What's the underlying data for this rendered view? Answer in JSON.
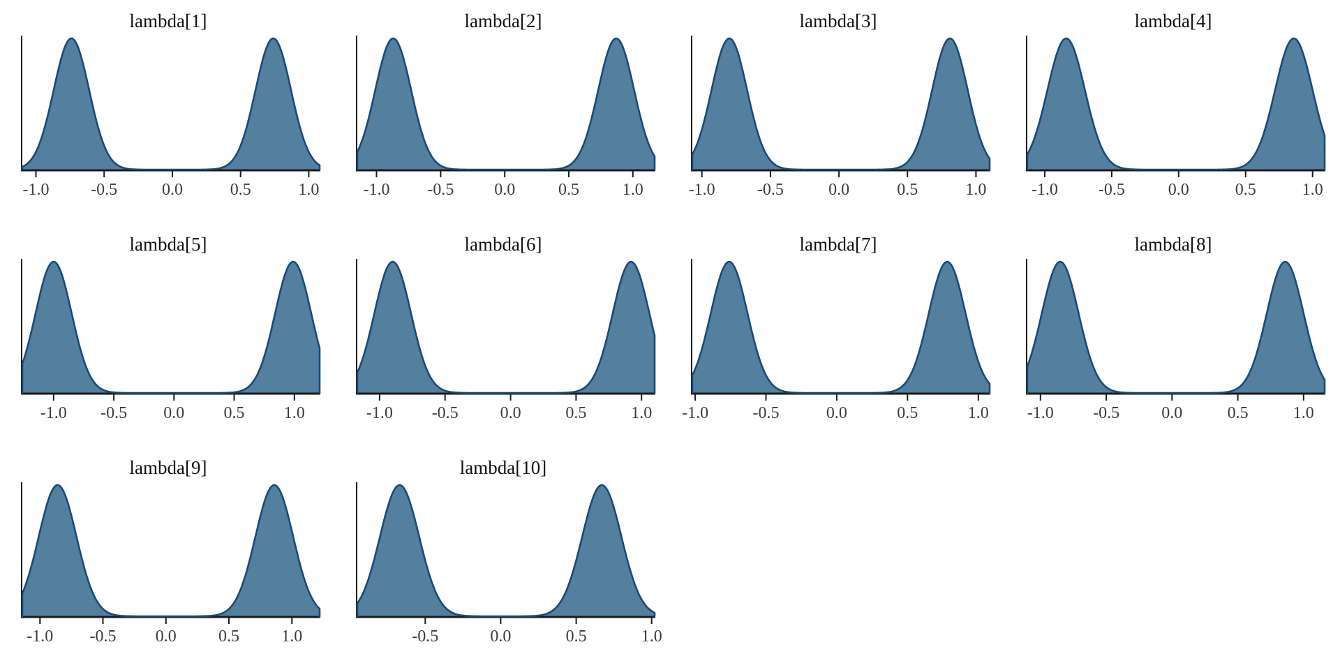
{
  "figure": {
    "kind": "posterior density grid",
    "rows": 3,
    "cols": 4,
    "background": "#ffffff"
  },
  "style": {
    "fill_color": "#53809e",
    "line_color": "#174a7c",
    "axis_color": "#1b1b1b",
    "tick_label_color": "#3c3c3c",
    "title_color": "#101010"
  },
  "chart_data": [
    {
      "type": "area",
      "title": "lambda[1]",
      "xlabel": "",
      "ylabel": "",
      "grid": false,
      "legend": false,
      "x_range": [
        -1.1,
        1.08
      ],
      "xticks": [
        -1.0,
        -0.5,
        0.0,
        0.5,
        1.0
      ],
      "xtick_labels": [
        "-1.0",
        "-0.5",
        "0.0",
        "0.5",
        "1.0"
      ],
      "kde_peaks": [
        {
          "mean": -0.74,
          "sd": 0.13
        },
        {
          "mean": 0.74,
          "sd": 0.13
        }
      ]
    },
    {
      "type": "area",
      "title": "lambda[2]",
      "xlabel": "",
      "ylabel": "",
      "grid": false,
      "legend": false,
      "x_range": [
        -1.15,
        1.17
      ],
      "xticks": [
        -1.0,
        -0.5,
        0.0,
        0.5,
        1.0
      ],
      "xtick_labels": [
        "-1.0",
        "-0.5",
        "0.0",
        "0.5",
        "1.0"
      ],
      "kde_peaks": [
        {
          "mean": -0.87,
          "sd": 0.14
        },
        {
          "mean": 0.87,
          "sd": 0.14
        }
      ]
    },
    {
      "type": "area",
      "title": "lambda[3]",
      "xlabel": "",
      "ylabel": "",
      "grid": false,
      "legend": false,
      "x_range": [
        -1.07,
        1.1
      ],
      "xticks": [
        -1.0,
        -0.5,
        0.0,
        0.5,
        1.0
      ],
      "xtick_labels": [
        "-1.0",
        "-0.5",
        "0.0",
        "0.5",
        "1.0"
      ],
      "kde_peaks": [
        {
          "mean": -0.8,
          "sd": 0.13
        },
        {
          "mean": 0.81,
          "sd": 0.13
        }
      ]
    },
    {
      "type": "area",
      "title": "lambda[4]",
      "xlabel": "",
      "ylabel": "",
      "grid": false,
      "legend": false,
      "x_range": [
        -1.13,
        1.09
      ],
      "xticks": [
        -1.0,
        -0.5,
        0.0,
        0.5,
        1.0
      ],
      "xtick_labels": [
        "-1.0",
        "-0.5",
        "0.0",
        "0.5",
        "1.0"
      ],
      "kde_peaks": [
        {
          "mean": -0.84,
          "sd": 0.14
        },
        {
          "mean": 0.86,
          "sd": 0.14
        }
      ]
    },
    {
      "type": "area",
      "title": "lambda[5]",
      "xlabel": "",
      "ylabel": "",
      "grid": false,
      "legend": false,
      "x_range": [
        -1.26,
        1.21
      ],
      "xticks": [
        -1.0,
        -0.5,
        0.0,
        0.5,
        1.0
      ],
      "xtick_labels": [
        "-1.0",
        "-0.5",
        "0.0",
        "0.5",
        "1.0"
      ],
      "kde_peaks": [
        {
          "mean": -1.0,
          "sd": 0.15
        },
        {
          "mean": 0.99,
          "sd": 0.15
        }
      ]
    },
    {
      "type": "area",
      "title": "lambda[6]",
      "xlabel": "",
      "ylabel": "",
      "grid": false,
      "legend": false,
      "x_range": [
        -1.17,
        1.1
      ],
      "xticks": [
        -1.0,
        -0.5,
        0.0,
        0.5,
        1.0
      ],
      "xtick_labels": [
        "-1.0",
        "-0.5",
        "0.0",
        "0.5",
        "1.0"
      ],
      "kde_peaks": [
        {
          "mean": -0.9,
          "sd": 0.14
        },
        {
          "mean": 0.92,
          "sd": 0.14
        }
      ]
    },
    {
      "type": "area",
      "title": "lambda[7]",
      "xlabel": "",
      "ylabel": "",
      "grid": false,
      "legend": false,
      "x_range": [
        -1.02,
        1.08
      ],
      "xticks": [
        -1.0,
        -0.5,
        0.0,
        0.5,
        1.0
      ],
      "xtick_labels": [
        "-1.0",
        "-0.5",
        "0.0",
        "0.5",
        "1.0"
      ],
      "kde_peaks": [
        {
          "mean": -0.76,
          "sd": 0.13
        },
        {
          "mean": 0.78,
          "sd": 0.13
        }
      ]
    },
    {
      "type": "area",
      "title": "lambda[8]",
      "xlabel": "",
      "ylabel": "",
      "grid": false,
      "legend": false,
      "x_range": [
        -1.1,
        1.16
      ],
      "xticks": [
        -1.0,
        -0.5,
        0.0,
        0.5,
        1.0
      ],
      "xtick_labels": [
        "-1.0",
        "-0.5",
        "0.0",
        "0.5",
        "1.0"
      ],
      "kde_peaks": [
        {
          "mean": -0.85,
          "sd": 0.14
        },
        {
          "mean": 0.86,
          "sd": 0.14
        }
      ]
    },
    {
      "type": "area",
      "title": "lambda[9]",
      "xlabel": "",
      "ylabel": "",
      "grid": false,
      "legend": false,
      "x_range": [
        -1.14,
        1.22
      ],
      "xticks": [
        -1.0,
        -0.5,
        0.0,
        0.5,
        1.0
      ],
      "xtick_labels": [
        "-1.0",
        "-0.5",
        "0.0",
        "0.5",
        "1.0"
      ],
      "kde_peaks": [
        {
          "mean": -0.86,
          "sd": 0.15
        },
        {
          "mean": 0.86,
          "sd": 0.15
        }
      ]
    },
    {
      "type": "area",
      "title": "lambda[10]",
      "xlabel": "",
      "ylabel": "",
      "grid": false,
      "legend": false,
      "x_range": [
        -0.95,
        1.02
      ],
      "xticks": [
        -0.5,
        0.0,
        0.5,
        1.0
      ],
      "xtick_labels": [
        "-0.5",
        "0.0",
        "0.5",
        "1.0"
      ],
      "kde_peaks": [
        {
          "mean": -0.67,
          "sd": 0.13
        },
        {
          "mean": 0.67,
          "sd": 0.13
        }
      ]
    }
  ]
}
